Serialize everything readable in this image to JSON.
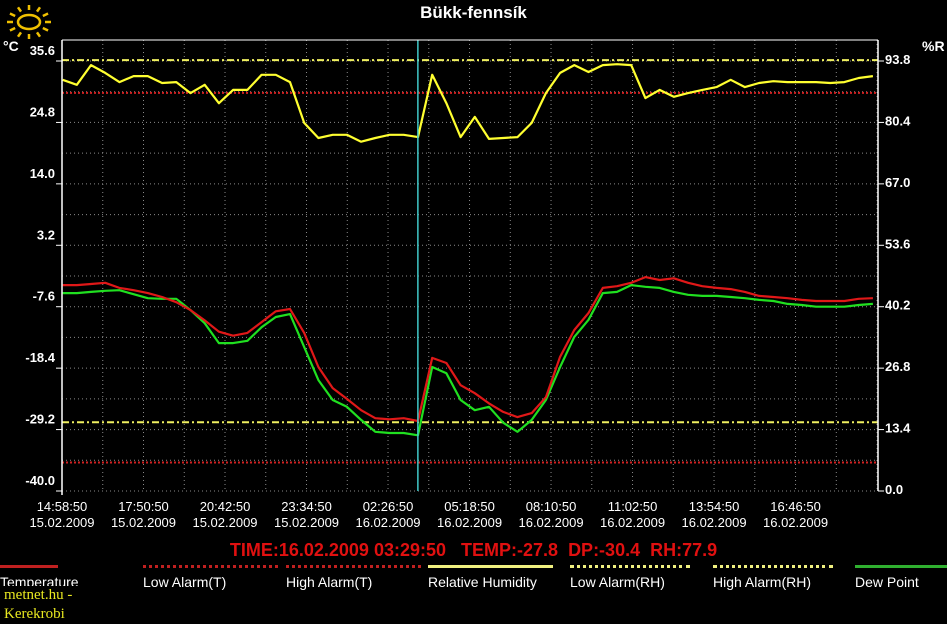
{
  "title": "Bükk-fennsík",
  "readout": {
    "time": "TIME:16.02.2009 03:29:50",
    "temp": "TEMP:-27.8",
    "dp": "DP:-30.4",
    "rh": "RH:77.9"
  },
  "watermark": "metnet.hu - Kerekrobi",
  "icon": "sun-icon",
  "colors": {
    "temperature": "#e01818",
    "dew_point": "#20e020",
    "humidity": "#ffff30",
    "cursor": "#40c8c8",
    "background": "#000000",
    "grid": "#8a8a8a"
  },
  "legend": [
    {
      "label": "Temperature",
      "color": "#c02020",
      "style": "solid"
    },
    {
      "label": "Low Alarm(T)",
      "color": "#c02020",
      "style": "dotted"
    },
    {
      "label": "High Alarm(T)",
      "color": "#c02020",
      "style": "dotted"
    },
    {
      "label": "Relative Humidity",
      "color": "#f0f080",
      "style": "solid"
    },
    {
      "label": "Low Alarm(RH)",
      "color": "#f0f080",
      "style": "dashdot"
    },
    {
      "label": "High Alarm(RH)",
      "color": "#f0f080",
      "style": "dashdot"
    },
    {
      "label": "Dew Point",
      "color": "#30b030",
      "style": "solid"
    }
  ],
  "chart_data": {
    "type": "line",
    "title": "Bükk-fennsík",
    "y_left_unit": "°C",
    "y_right_unit": "%R",
    "ylim_left": [
      -40.0,
      35.6
    ],
    "ylim_right": [
      0.0,
      93.8
    ],
    "y_left_ticks": [
      "35.6",
      "24.8",
      "14.0",
      "3.2",
      "-7.6",
      "-18.4",
      "-29.2",
      "-40.0"
    ],
    "y_right_ticks": [
      "93.8",
      "80.4",
      "67.0",
      "53.6",
      "40.2",
      "26.8",
      "13.4",
      "0.0"
    ],
    "xlim": [
      "15.02.2009 14:58:50",
      "16.02.2009 19:40:50"
    ],
    "x_ticks": [
      {
        "time": "14:58:50",
        "date": "15.02.2009"
      },
      {
        "time": "17:50:50",
        "date": "15.02.2009"
      },
      {
        "time": "20:42:50",
        "date": "15.02.2009"
      },
      {
        "time": "23:34:50",
        "date": "15.02.2009"
      },
      {
        "time": "02:26:50",
        "date": "16.02.2009"
      },
      {
        "time": "05:18:50",
        "date": "16.02.2009"
      },
      {
        "time": "08:10:50",
        "date": "16.02.2009"
      },
      {
        "time": "11:02:50",
        "date": "16.02.2009"
      },
      {
        "time": "13:54:50",
        "date": "16.02.2009"
      },
      {
        "time": "16:46:50",
        "date": "16.02.2009"
      }
    ],
    "grid": true,
    "cursor_time": "16.02.2009 03:29:50",
    "alarms": {
      "temp_high": 30,
      "temp_low": -35,
      "rh_high": 94,
      "rh_low": 15
    },
    "x": [
      "15.02.2009 15:00",
      "15.02.2009 15:30",
      "15.02.2009 16:00",
      "15.02.2009 16:30",
      "15.02.2009 17:00",
      "15.02.2009 17:30",
      "15.02.2009 18:00",
      "15.02.2009 18:30",
      "15.02.2009 19:00",
      "15.02.2009 19:30",
      "15.02.2009 20:00",
      "15.02.2009 20:30",
      "15.02.2009 21:00",
      "15.02.2009 21:30",
      "15.02.2009 22:00",
      "15.02.2009 22:30",
      "15.02.2009 23:00",
      "15.02.2009 23:30",
      "16.02.2009 00:00",
      "16.02.2009 00:30",
      "16.02.2009 01:00",
      "16.02.2009 01:30",
      "16.02.2009 02:00",
      "16.02.2009 02:30",
      "16.02.2009 03:00",
      "16.02.2009 03:30",
      "16.02.2009 04:00",
      "16.02.2009 04:30",
      "16.02.2009 05:00",
      "16.02.2009 05:30",
      "16.02.2009 06:00",
      "16.02.2009 06:30",
      "16.02.2009 07:00",
      "16.02.2009 07:30",
      "16.02.2009 08:00",
      "16.02.2009 08:30",
      "16.02.2009 09:00",
      "16.02.2009 09:30",
      "16.02.2009 10:00",
      "16.02.2009 10:30",
      "16.02.2009 11:00",
      "16.02.2009 11:30",
      "16.02.2009 12:00",
      "16.02.2009 12:30",
      "16.02.2009 13:00",
      "16.02.2009 13:30",
      "16.02.2009 14:00",
      "16.02.2009 14:30",
      "16.02.2009 15:00",
      "16.02.2009 15:30",
      "16.02.2009 16:00",
      "16.02.2009 16:30",
      "16.02.2009 17:00",
      "16.02.2009 17:30",
      "16.02.2009 18:00",
      "16.02.2009 18:30",
      "16.02.2009 19:00",
      "16.02.2009 19:30"
    ],
    "series": [
      {
        "name": "Temperature",
        "axis": "left",
        "color": "#e01818",
        "values": [
          -3.8,
          -3.8,
          -3.6,
          -3.4,
          -4.3,
          -4.7,
          -5.2,
          -5.9,
          -6.8,
          -8.2,
          -10.0,
          -12.0,
          -12.7,
          -12.2,
          -10.3,
          -8.4,
          -8.0,
          -12.2,
          -18.2,
          -21.9,
          -23.8,
          -25.8,
          -27.2,
          -27.4,
          -27.2,
          -27.7,
          -16.6,
          -17.5,
          -21.4,
          -22.8,
          -24.6,
          -26.1,
          -27.0,
          -26.3,
          -23.5,
          -16.4,
          -11.7,
          -8.7,
          -4.3,
          -4.0,
          -3.4,
          -2.4,
          -2.9,
          -2.6,
          -3.4,
          -4.0,
          -4.3,
          -4.5,
          -5.0,
          -5.7,
          -5.9,
          -6.1,
          -6.4,
          -6.6,
          -6.6,
          -6.6,
          -6.2,
          -6.1
        ]
      },
      {
        "name": "Dew Point",
        "axis": "left",
        "color": "#20e020",
        "values": [
          -5.2,
          -5.2,
          -5.0,
          -4.8,
          -4.7,
          -5.4,
          -6.1,
          -6.2,
          -6.2,
          -8.2,
          -10.5,
          -14.0,
          -14.0,
          -13.6,
          -11.2,
          -9.4,
          -8.9,
          -14.7,
          -20.5,
          -24.0,
          -25.2,
          -27.5,
          -29.6,
          -29.8,
          -29.8,
          -30.2,
          -18.2,
          -19.3,
          -24.0,
          -25.8,
          -25.2,
          -28.0,
          -29.6,
          -27.5,
          -24.0,
          -18.2,
          -12.9,
          -9.9,
          -5.2,
          -5.0,
          -3.8,
          -4.1,
          -4.3,
          -5.0,
          -5.5,
          -5.7,
          -5.7,
          -5.9,
          -6.1,
          -6.4,
          -6.6,
          -7.1,
          -7.3,
          -7.6,
          -7.6,
          -7.6,
          -7.3,
          -7.1
        ]
      },
      {
        "name": "Relative Humidity",
        "axis": "right",
        "color": "#ffff30",
        "values": [
          89.7,
          88.6,
          92.9,
          91.2,
          89.2,
          90.5,
          90.5,
          89.0,
          89.2,
          86.8,
          88.6,
          84.6,
          87.5,
          87.5,
          90.8,
          90.8,
          89.2,
          80.3,
          77.0,
          77.7,
          77.7,
          76.2,
          77.0,
          77.7,
          77.7,
          77.2,
          90.8,
          84.6,
          77.2,
          81.6,
          76.8,
          77.0,
          77.2,
          80.3,
          86.8,
          91.2,
          92.9,
          91.4,
          92.9,
          93.1,
          92.9,
          85.7,
          87.5,
          86.0,
          86.8,
          87.5,
          88.1,
          89.7,
          88.1,
          89.0,
          89.4,
          89.2,
          89.2,
          89.2,
          89.0,
          89.2,
          90.1,
          90.5
        ]
      }
    ]
  }
}
